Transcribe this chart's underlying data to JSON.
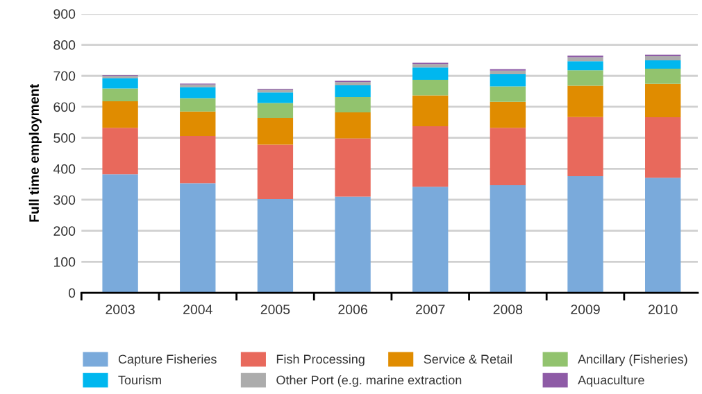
{
  "chart_data": {
    "type": "bar",
    "stacked": true,
    "ylabel": "Full time employment",
    "categories": [
      "2003",
      "2004",
      "2005",
      "2006",
      "2007",
      "2008",
      "2009",
      "2010"
    ],
    "series": [
      {
        "name": "Capture Fisheries",
        "color": "#7aaadb",
        "values": [
          382,
          353,
          302,
          310,
          342,
          347,
          376,
          371
        ]
      },
      {
        "name": "Fish Processing",
        "color": "#e8695c",
        "values": [
          150,
          153,
          176,
          188,
          195,
          185,
          191,
          195
        ]
      },
      {
        "name": "Service & Retail",
        "color": "#e08c00",
        "values": [
          86,
          79,
          86,
          84,
          100,
          84,
          101,
          108
        ]
      },
      {
        "name": "Ancillary (Fisheries)",
        "color": "#92c36e",
        "values": [
          41,
          43,
          48,
          49,
          50,
          50,
          50,
          49
        ]
      },
      {
        "name": "Tourism",
        "color": "#00b7ef",
        "values": [
          33,
          35,
          34,
          38,
          40,
          39,
          29,
          27
        ]
      },
      {
        "name": "Other Port (e.g. marine extraction",
        "color": "#acacac",
        "values": [
          8,
          9,
          9,
          11,
          11,
          12,
          13,
          13
        ]
      },
      {
        "name": "Aquaculture",
        "color": "#8e5ba6",
        "values": [
          3,
          3,
          3,
          4,
          4,
          4,
          5,
          5
        ]
      }
    ],
    "ylim": [
      0,
      900
    ],
    "yticks": [
      0,
      100,
      200,
      300,
      400,
      500,
      600,
      700,
      800,
      900
    ],
    "grid": "y",
    "legend": "bottom"
  }
}
